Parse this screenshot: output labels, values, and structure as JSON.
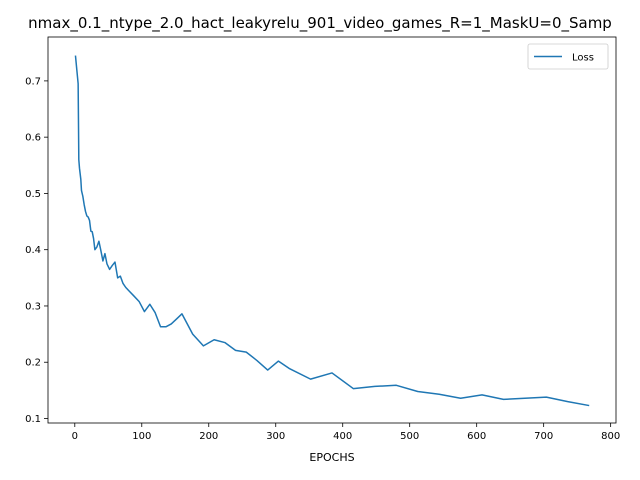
{
  "chart_data": {
    "type": "line",
    "title": "nmax_0.1_ntype_2.0_hact_leakyrelu_901_video_games_R=1_MaskU=0_Samp",
    "xlabel": "EPOCHS",
    "ylabel": "",
    "xlim": [
      -40,
      808
    ],
    "ylim": [
      0.092,
      0.778
    ],
    "xticks": [
      0,
      100,
      200,
      300,
      400,
      500,
      600,
      700,
      800
    ],
    "yticks": [
      0.1,
      0.2,
      0.3,
      0.4,
      0.5,
      0.6,
      0.7
    ],
    "xtick_labels": [
      "0",
      "100",
      "200",
      "300",
      "400",
      "500",
      "600",
      "700",
      "800"
    ],
    "ytick_labels": [
      "0.1",
      "0.2",
      "0.3",
      "0.4",
      "0.5",
      "0.6",
      "0.7"
    ],
    "grid": false,
    "legend": {
      "position": "top-right",
      "entries": [
        "Loss"
      ]
    },
    "series": [
      {
        "name": "Loss",
        "color": "#1f77b4",
        "x": [
          1,
          3,
          5,
          6,
          7,
          9,
          10,
          12,
          14,
          16,
          18,
          20,
          22,
          24,
          26,
          28,
          30,
          33,
          36,
          39,
          42,
          45,
          48,
          52,
          56,
          60,
          64,
          68,
          72,
          76,
          80,
          88,
          96,
          104,
          112,
          120,
          128,
          136,
          144,
          152,
          160,
          176,
          192,
          208,
          224,
          240,
          256,
          272,
          288,
          304,
          320,
          352,
          384,
          416,
          448,
          480,
          512,
          544,
          576,
          608,
          640,
          672,
          704,
          736,
          768
        ],
        "y": [
          0.745,
          0.72,
          0.695,
          0.56,
          0.545,
          0.525,
          0.505,
          0.495,
          0.48,
          0.468,
          0.46,
          0.458,
          0.452,
          0.433,
          0.432,
          0.42,
          0.4,
          0.405,
          0.415,
          0.398,
          0.38,
          0.393,
          0.375,
          0.365,
          0.372,
          0.378,
          0.35,
          0.353,
          0.34,
          0.333,
          0.328,
          0.318,
          0.308,
          0.29,
          0.303,
          0.288,
          0.263,
          0.263,
          0.268,
          0.277,
          0.286,
          0.25,
          0.229,
          0.24,
          0.235,
          0.221,
          0.218,
          0.203,
          0.186,
          0.202,
          0.189,
          0.17,
          0.181,
          0.153,
          0.157,
          0.159,
          0.148,
          0.143,
          0.136,
          0.142,
          0.134,
          0.136,
          0.138,
          0.13,
          0.123
        ]
      }
    ]
  }
}
